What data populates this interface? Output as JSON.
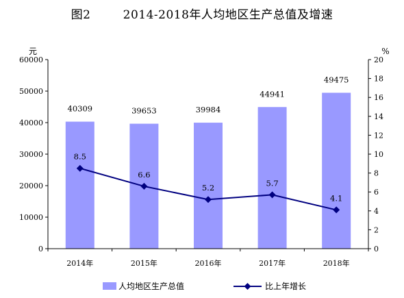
{
  "title": "图2        2014-2018年人均地区生产总值及增速",
  "chart_data": {
    "type": "bar",
    "categories": [
      "2014年",
      "2015年",
      "2016年",
      "2017年",
      "2018年"
    ],
    "series": [
      {
        "name": "人均地区生产总值",
        "type": "bar",
        "axis": "left",
        "color": "#9999ff",
        "values": [
          40309,
          39653,
          39984,
          44941,
          49475
        ]
      },
      {
        "name": "比上年增长",
        "type": "line",
        "axis": "right",
        "color": "#000080",
        "values": [
          8.5,
          6.6,
          5.2,
          5.7,
          4.1
        ]
      }
    ],
    "y_left": {
      "unit": "元",
      "min": 0,
      "max": 60000,
      "step": 10000
    },
    "y_right": {
      "unit": "%",
      "min": 0,
      "max": 20,
      "step": 2
    },
    "grid": false,
    "legend_position": "bottom"
  }
}
